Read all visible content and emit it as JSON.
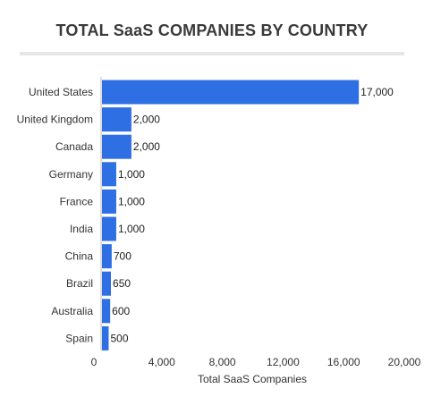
{
  "chart_data": {
    "type": "bar",
    "orientation": "horizontal",
    "title": "TOTAL SaaS COMPANIES BY COUNTRY",
    "xlabel": "Total SaaS Companies",
    "ylabel": "",
    "categories": [
      "United States",
      "United Kingdom",
      "Canada",
      "Germany",
      "France",
      "India",
      "China",
      "Brazil",
      "Australia",
      "Spain"
    ],
    "values": [
      17000,
      2000,
      2000,
      1000,
      1000,
      1000,
      700,
      650,
      600,
      500
    ],
    "data_labels": [
      "17,000",
      "2,000",
      "2,000",
      "1,000",
      "1,000",
      "1,000",
      "700",
      "650",
      "600",
      "500"
    ],
    "xlim": [
      0,
      20000
    ],
    "xticks": [
      0,
      4000,
      8000,
      12000,
      16000,
      20000
    ],
    "xtick_labels": [
      "0",
      "4,000",
      "8,000",
      "12,000",
      "16,000",
      "20,000"
    ],
    "grid": false,
    "legend": "none",
    "colors": {
      "bar": "#2f6fe4",
      "text": "#333333",
      "title": "#3a3a3a",
      "axis": "#bbbbbb"
    }
  }
}
